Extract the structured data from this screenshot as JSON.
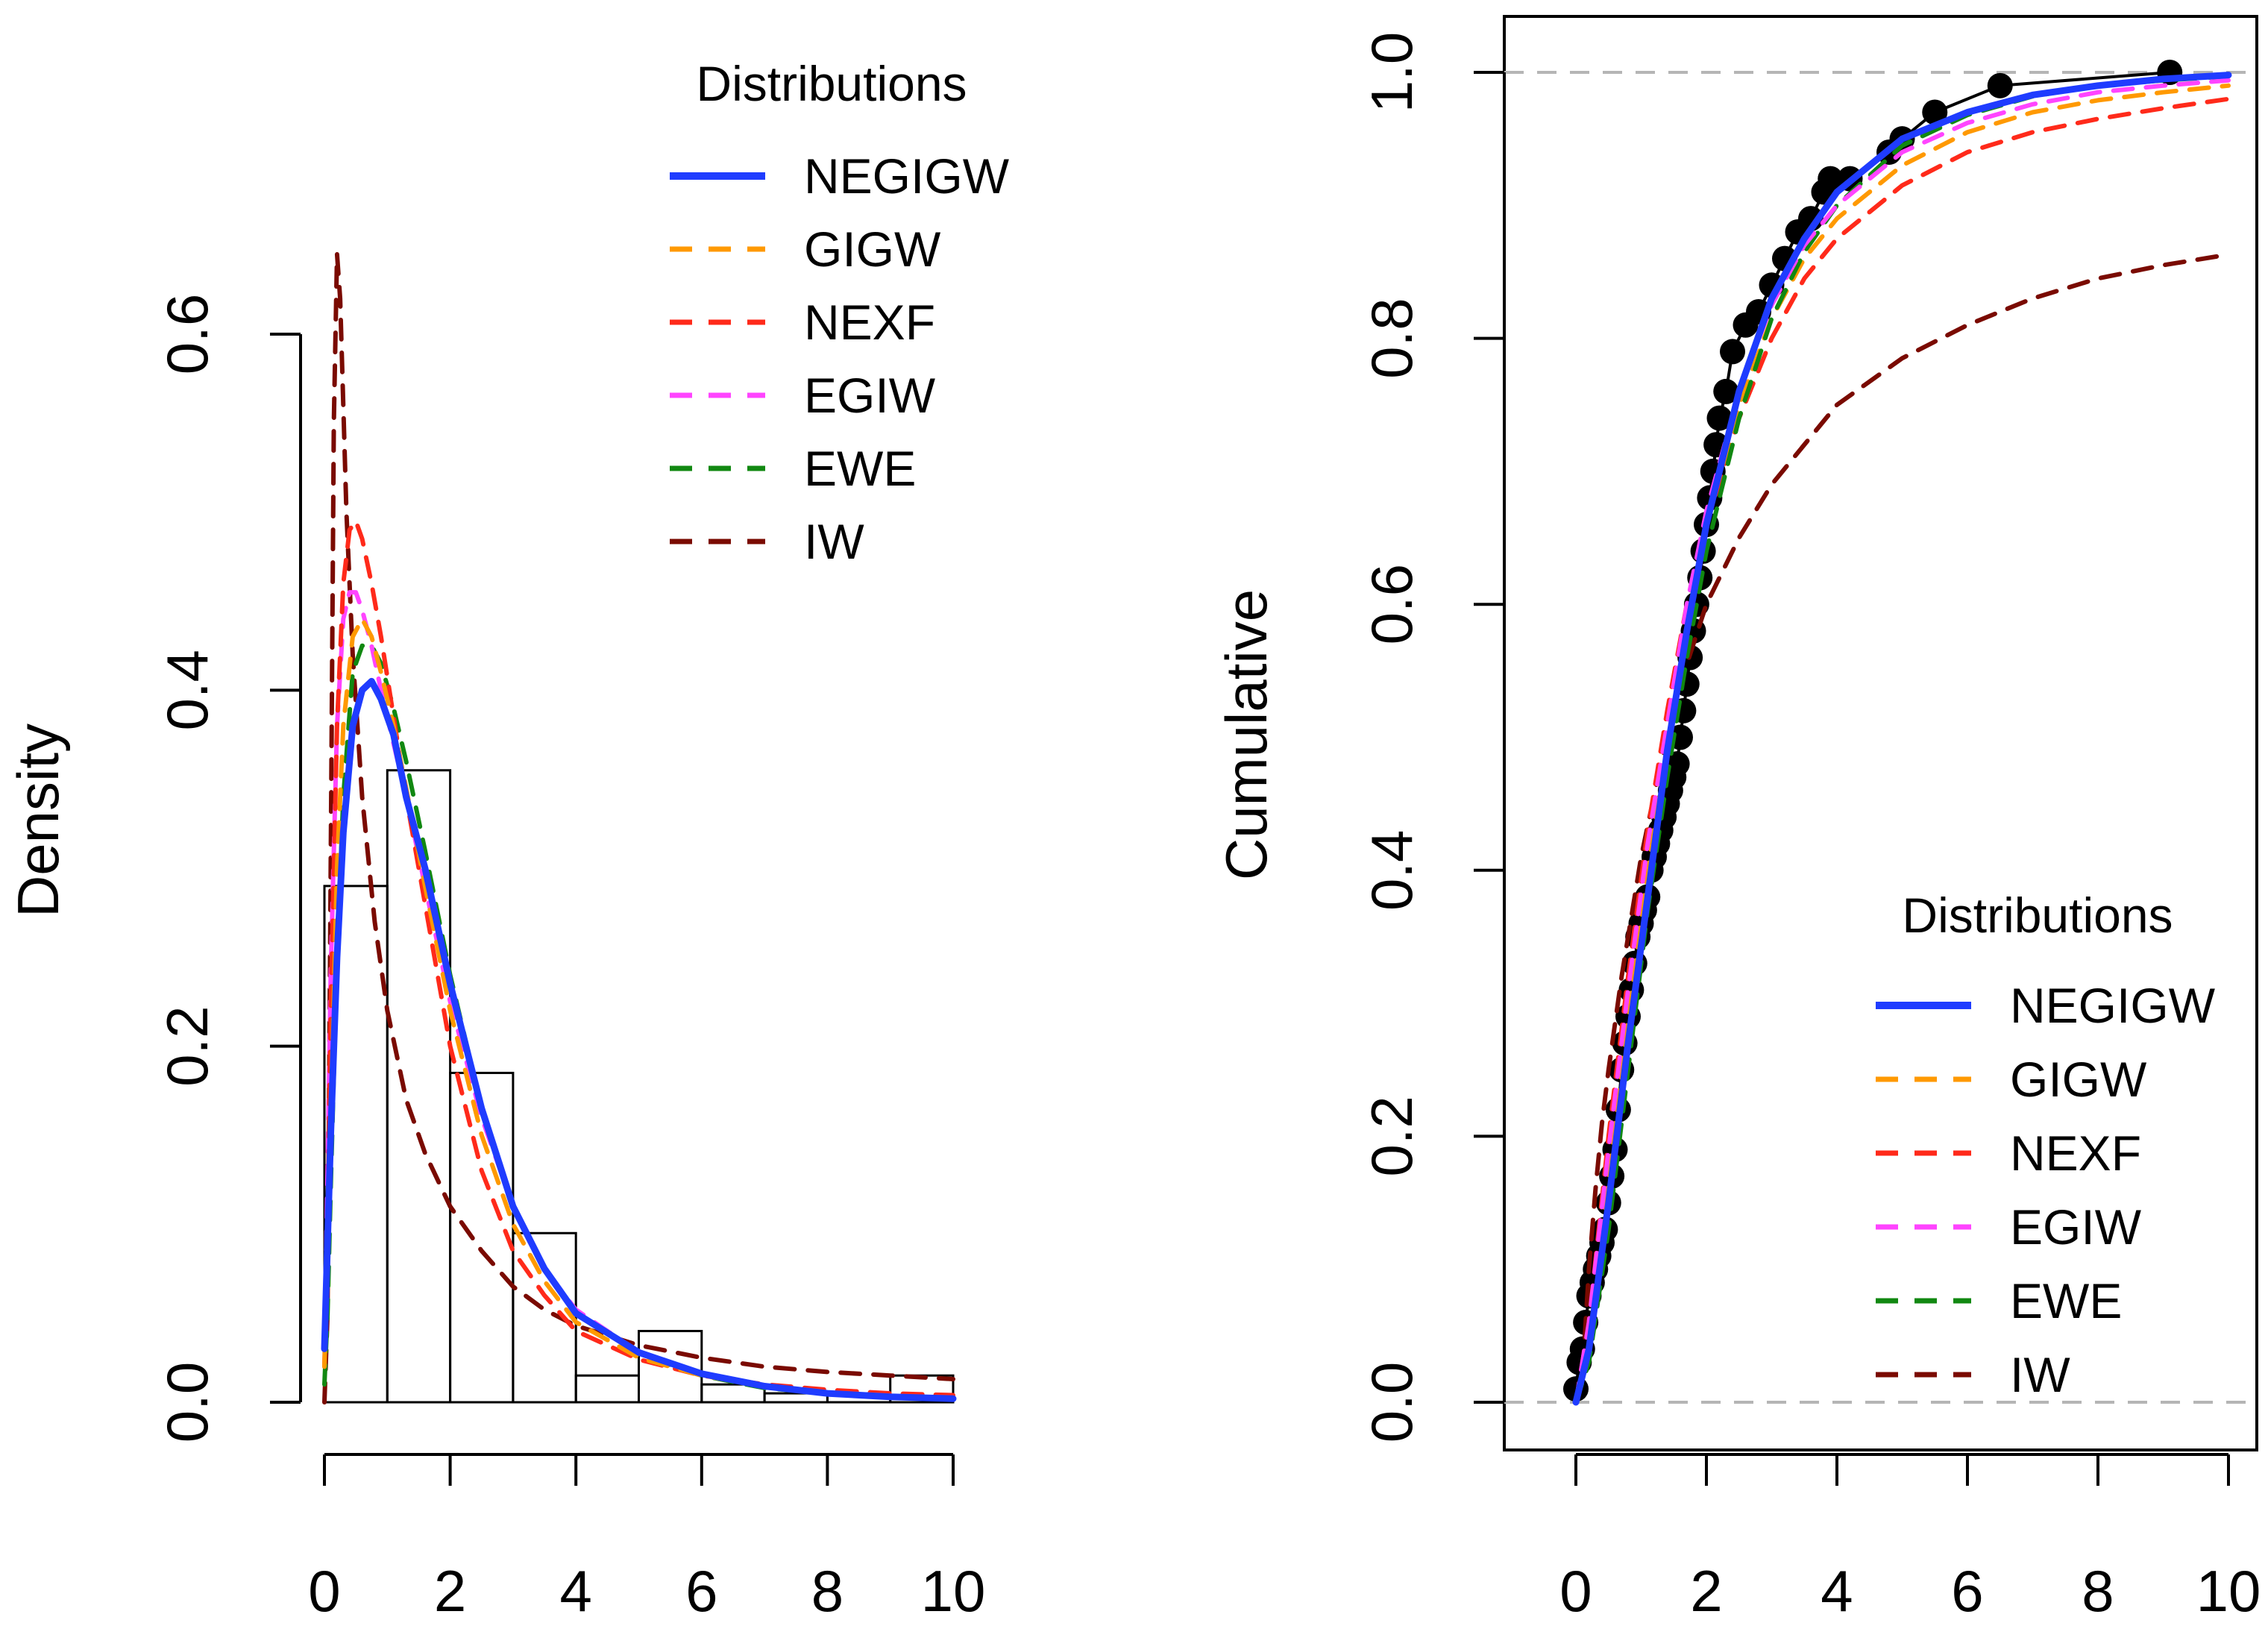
{
  "chart_data": [
    {
      "type": "histogram",
      "ylabel": "Density",
      "xlabel": "",
      "xlim": [
        0,
        10
      ],
      "ylim": [
        0,
        0.6
      ],
      "x_ticks": [
        "0",
        "2",
        "4",
        "6",
        "8",
        "10"
      ],
      "y_ticks": [
        "0.0",
        "0.2",
        "0.4",
        "0.6"
      ],
      "histogram": {
        "bin_edges": [
          0,
          1,
          2,
          3,
          4,
          5,
          6,
          7,
          8,
          9,
          10
        ],
        "density": [
          0.29,
          0.355,
          0.185,
          0.095,
          0.015,
          0.04,
          0.01,
          0.005,
          0.005,
          0.015
        ]
      },
      "legend": {
        "title": "Distributions",
        "position": "top-right",
        "entries": [
          {
            "name": "NEGIGW",
            "color": "#1f3cff",
            "style": "solid"
          },
          {
            "name": "GIGW",
            "color": "#ff9900",
            "style": "dashed"
          },
          {
            "name": "NEXF",
            "color": "#ff2a1a",
            "style": "dashed"
          },
          {
            "name": "EGIW",
            "color": "#ff44ff",
            "style": "dashed"
          },
          {
            "name": "EWE",
            "color": "#118811",
            "style": "dashed"
          },
          {
            "name": "IW",
            "color": "#7a0a00",
            "style": "dashed"
          }
        ]
      },
      "series": [
        {
          "name": "NEGIGW",
          "x": [
            0,
            0.05,
            0.1,
            0.2,
            0.3,
            0.45,
            0.6,
            0.75,
            0.9,
            1.1,
            1.3,
            1.6,
            2.0,
            2.5,
            3.0,
            3.5,
            4.0,
            5.0,
            6.0,
            7.0,
            8.0,
            9.0,
            10.0
          ],
          "y": [
            0.03,
            0.09,
            0.15,
            0.25,
            0.32,
            0.38,
            0.4,
            0.405,
            0.395,
            0.375,
            0.34,
            0.3,
            0.235,
            0.165,
            0.11,
            0.075,
            0.05,
            0.028,
            0.016,
            0.009,
            0.005,
            0.003,
            0.002
          ]
        },
        {
          "name": "GIGW",
          "x": [
            0,
            0.05,
            0.1,
            0.2,
            0.3,
            0.45,
            0.6,
            0.75,
            0.9,
            1.1,
            1.3,
            1.6,
            2.0,
            2.5,
            3.0,
            3.5,
            4.0,
            5.0,
            6.0,
            7.0,
            8.0,
            9.0,
            10.0
          ],
          "y": [
            0.02,
            0.08,
            0.16,
            0.3,
            0.38,
            0.43,
            0.44,
            0.43,
            0.41,
            0.38,
            0.345,
            0.29,
            0.22,
            0.15,
            0.1,
            0.068,
            0.045,
            0.025,
            0.015,
            0.009,
            0.005,
            0.003,
            0.002
          ]
        },
        {
          "name": "NEXF",
          "x": [
            0,
            0.05,
            0.1,
            0.2,
            0.3,
            0.4,
            0.5,
            0.6,
            0.75,
            0.9,
            1.1,
            1.3,
            1.6,
            2.0,
            2.5,
            3.0,
            3.5,
            4.0,
            5.0,
            6.0,
            7.0,
            8.0,
            9.0,
            10.0
          ],
          "y": [
            0.02,
            0.1,
            0.22,
            0.38,
            0.46,
            0.49,
            0.495,
            0.485,
            0.46,
            0.43,
            0.385,
            0.34,
            0.28,
            0.2,
            0.13,
            0.085,
            0.06,
            0.04,
            0.024,
            0.015,
            0.01,
            0.007,
            0.005,
            0.004
          ]
        },
        {
          "name": "EGIW",
          "x": [
            0,
            0.05,
            0.1,
            0.2,
            0.3,
            0.4,
            0.5,
            0.6,
            0.75,
            0.9,
            1.1,
            1.3,
            1.6,
            2.0,
            2.5,
            3.0,
            3.5,
            4.0,
            5.0,
            6.0,
            7.0,
            8.0,
            9.0,
            10.0
          ],
          "y": [
            0.03,
            0.13,
            0.24,
            0.38,
            0.44,
            0.455,
            0.455,
            0.445,
            0.425,
            0.4,
            0.37,
            0.34,
            0.29,
            0.225,
            0.16,
            0.11,
            0.075,
            0.052,
            0.028,
            0.016,
            0.009,
            0.005,
            0.003,
            0.002
          ]
        },
        {
          "name": "EWE",
          "x": [
            0,
            0.05,
            0.1,
            0.2,
            0.3,
            0.45,
            0.6,
            0.75,
            0.9,
            1.1,
            1.3,
            1.6,
            2.0,
            2.5,
            3.0,
            3.5,
            4.0,
            5.0,
            6.0,
            7.0,
            8.0,
            9.0,
            10.0
          ],
          "y": [
            0.01,
            0.05,
            0.12,
            0.25,
            0.34,
            0.41,
            0.425,
            0.425,
            0.415,
            0.39,
            0.36,
            0.31,
            0.24,
            0.165,
            0.11,
            0.074,
            0.05,
            0.027,
            0.015,
            0.008,
            0.005,
            0.003,
            0.002
          ]
        },
        {
          "name": "IW",
          "x": [
            0,
            0.05,
            0.1,
            0.15,
            0.2,
            0.25,
            0.3,
            0.35,
            0.45,
            0.6,
            0.8,
            1.0,
            1.3,
            1.6,
            2.0,
            2.5,
            3.0,
            3.5,
            4.0,
            5.0,
            6.0,
            7.0,
            8.0,
            9.0,
            10.0
          ],
          "y": [
            0.0,
            0.05,
            0.3,
            0.55,
            0.645,
            0.62,
            0.56,
            0.5,
            0.42,
            0.34,
            0.27,
            0.22,
            0.17,
            0.14,
            0.11,
            0.085,
            0.065,
            0.052,
            0.043,
            0.032,
            0.025,
            0.02,
            0.017,
            0.015,
            0.013
          ]
        }
      ]
    },
    {
      "type": "line",
      "ylabel": "Cumulative",
      "xlabel": "",
      "xlim": [
        -1,
        10
      ],
      "ylim": [
        0,
        1.0
      ],
      "x_ticks": [
        "0",
        "2",
        "4",
        "6",
        "8",
        "10"
      ],
      "y_ticks": [
        "0.0",
        "0.2",
        "0.4",
        "0.6",
        "0.8",
        "1.0"
      ],
      "reference_lines": [
        0,
        1
      ],
      "empirical_cdf": {
        "x": [
          0.0,
          0.05,
          0.1,
          0.15,
          0.2,
          0.25,
          0.3,
          0.35,
          0.4,
          0.45,
          0.5,
          0.55,
          0.6,
          0.65,
          0.7,
          0.75,
          0.8,
          0.85,
          0.9,
          0.95,
          1.0,
          1.05,
          1.1,
          1.15,
          1.2,
          1.25,
          1.3,
          1.35,
          1.4,
          1.45,
          1.5,
          1.55,
          1.6,
          1.65,
          1.7,
          1.75,
          1.8,
          1.85,
          1.9,
          1.95,
          2.0,
          2.05,
          2.1,
          2.15,
          2.2,
          2.3,
          2.4,
          2.6,
          2.8,
          3.0,
          3.2,
          3.4,
          3.6,
          3.8,
          3.9,
          4.2,
          4.8,
          5.0,
          5.5,
          6.5,
          9.1
        ],
        "y": [
          0.01,
          0.03,
          0.04,
          0.06,
          0.08,
          0.09,
          0.1,
          0.11,
          0.12,
          0.13,
          0.15,
          0.17,
          0.19,
          0.22,
          0.25,
          0.27,
          0.29,
          0.31,
          0.33,
          0.35,
          0.36,
          0.37,
          0.38,
          0.4,
          0.41,
          0.42,
          0.43,
          0.44,
          0.45,
          0.46,
          0.47,
          0.48,
          0.5,
          0.52,
          0.54,
          0.56,
          0.58,
          0.6,
          0.62,
          0.64,
          0.66,
          0.68,
          0.7,
          0.72,
          0.74,
          0.76,
          0.79,
          0.81,
          0.82,
          0.84,
          0.86,
          0.88,
          0.89,
          0.91,
          0.92,
          0.92,
          0.94,
          0.95,
          0.97,
          0.99,
          1.0
        ]
      },
      "legend": {
        "title": "Distributions",
        "position": "bottom-right",
        "entries": [
          {
            "name": "NEGIGW",
            "color": "#1f3cff",
            "style": "solid"
          },
          {
            "name": "GIGW",
            "color": "#ff9900",
            "style": "dashed"
          },
          {
            "name": "NEXF",
            "color": "#ff2a1a",
            "style": "dashed"
          },
          {
            "name": "EGIW",
            "color": "#ff44ff",
            "style": "dashed"
          },
          {
            "name": "EWE",
            "color": "#118811",
            "style": "dashed"
          },
          {
            "name": "IW",
            "color": "#7a0a00",
            "style": "dashed"
          }
        ]
      },
      "series": [
        {
          "name": "NEGIGW",
          "x": [
            0,
            0.2,
            0.5,
            0.8,
            1.1,
            1.4,
            1.7,
            2.0,
            2.5,
            3.0,
            3.5,
            4.0,
            5.0,
            6.0,
            7.0,
            8.0,
            9.0,
            10.0
          ],
          "y": [
            0.0,
            0.04,
            0.15,
            0.27,
            0.38,
            0.49,
            0.58,
            0.66,
            0.76,
            0.83,
            0.875,
            0.91,
            0.95,
            0.97,
            0.983,
            0.99,
            0.995,
            0.998
          ]
        },
        {
          "name": "GIGW",
          "x": [
            0,
            0.2,
            0.5,
            0.8,
            1.1,
            1.4,
            1.7,
            2.0,
            2.5,
            3.0,
            3.5,
            4.0,
            5.0,
            6.0,
            7.0,
            8.0,
            9.0,
            10.0
          ],
          "y": [
            0.0,
            0.05,
            0.17,
            0.29,
            0.4,
            0.5,
            0.59,
            0.66,
            0.75,
            0.815,
            0.86,
            0.89,
            0.93,
            0.955,
            0.97,
            0.979,
            0.985,
            0.99
          ]
        },
        {
          "name": "NEXF",
          "x": [
            0,
            0.2,
            0.5,
            0.8,
            1.1,
            1.4,
            1.7,
            2.0,
            2.5,
            3.0,
            3.5,
            4.0,
            5.0,
            6.0,
            7.0,
            8.0,
            9.0,
            10.0
          ],
          "y": [
            0.0,
            0.06,
            0.2,
            0.32,
            0.43,
            0.52,
            0.6,
            0.66,
            0.74,
            0.8,
            0.845,
            0.875,
            0.915,
            0.94,
            0.955,
            0.965,
            0.973,
            0.98
          ]
        },
        {
          "name": "EGIW",
          "x": [
            0,
            0.2,
            0.5,
            0.8,
            1.1,
            1.4,
            1.7,
            2.0,
            2.5,
            3.0,
            3.5,
            4.0,
            5.0,
            6.0,
            7.0,
            8.0,
            9.0,
            10.0
          ],
          "y": [
            0.0,
            0.06,
            0.19,
            0.31,
            0.42,
            0.51,
            0.6,
            0.67,
            0.76,
            0.825,
            0.87,
            0.9,
            0.94,
            0.962,
            0.976,
            0.985,
            0.99,
            0.994
          ]
        },
        {
          "name": "EWE",
          "x": [
            0,
            0.2,
            0.5,
            0.8,
            1.1,
            1.4,
            1.7,
            2.0,
            2.5,
            3.0,
            3.5,
            4.0,
            5.0,
            6.0,
            7.0,
            8.0,
            9.0,
            10.0
          ],
          "y": [
            0.0,
            0.03,
            0.13,
            0.25,
            0.37,
            0.47,
            0.56,
            0.64,
            0.74,
            0.815,
            0.865,
            0.9,
            0.945,
            0.968,
            0.982,
            0.99,
            0.994,
            0.997
          ]
        },
        {
          "name": "IW",
          "x": [
            0.0,
            0.1,
            0.15,
            0.2,
            0.3,
            0.4,
            0.5,
            0.7,
            1.0,
            1.3,
            1.6,
            2.0,
            2.5,
            3.0,
            3.5,
            4.0,
            5.0,
            6.0,
            7.0,
            8.0,
            9.0,
            10.0
          ],
          "y": [
            0.0,
            0.02,
            0.06,
            0.1,
            0.16,
            0.21,
            0.25,
            0.32,
            0.41,
            0.48,
            0.54,
            0.6,
            0.65,
            0.69,
            0.72,
            0.75,
            0.785,
            0.81,
            0.83,
            0.845,
            0.855,
            0.863
          ]
        }
      ]
    }
  ]
}
